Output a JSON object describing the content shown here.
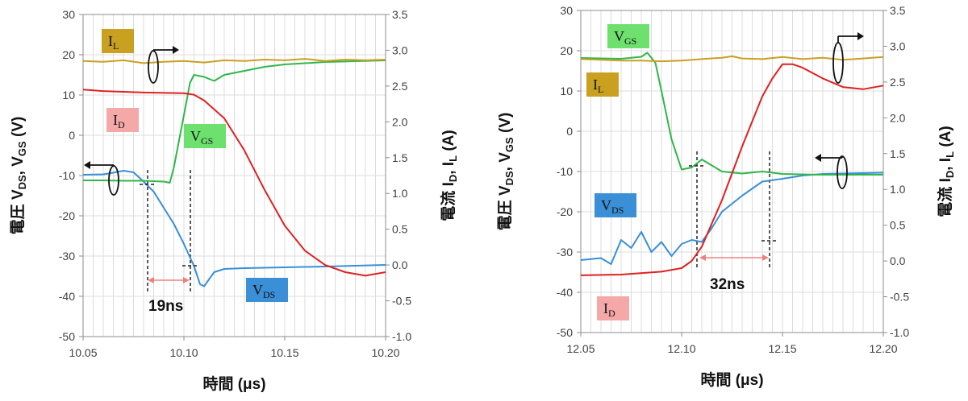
{
  "chart_data": [
    {
      "type": "line",
      "xlabel": "時間 (μs)",
      "ylabel_left": {
        "prefix": "電圧 V",
        "sub1": "DS",
        "mid": ", V",
        "sub2": "GS",
        "suffix": " (V)"
      },
      "ylabel_right": {
        "prefix": "電流 I",
        "sub1": "D",
        "mid": ", I",
        "sub2": "L",
        "suffix": " (A)"
      },
      "xlim": [
        10.05,
        10.2
      ],
      "ylim_left": [
        -50,
        30
      ],
      "ylim_right": [
        -1.0,
        3.5
      ],
      "xticks": [
        "10.05",
        "10.10",
        "10.15",
        "10.20"
      ],
      "yticks_left": [
        "-50",
        "-40",
        "-30",
        "-20",
        "-10",
        "0",
        "10",
        "20",
        "30"
      ],
      "yticks_right": [
        "-1.0",
        "-0.5",
        "0.0",
        "0.5",
        "1.0",
        "1.5",
        "2.0",
        "2.5",
        "3.0",
        "3.5"
      ],
      "grid": true,
      "series": [
        {
          "name": "VDS",
          "axis": "left",
          "color": "#3a8fd6",
          "x": [
            10.05,
            10.06,
            10.065,
            10.07,
            10.075,
            10.08,
            10.085,
            10.09,
            10.095,
            10.1,
            10.105,
            10.108,
            10.11,
            10.115,
            10.12,
            10.13,
            10.15,
            10.17,
            10.2
          ],
          "y": [
            -9.8,
            -9.7,
            -9.3,
            -8.8,
            -9.2,
            -11.5,
            -14,
            -18,
            -22,
            -27,
            -32.5,
            -37,
            -37.5,
            -34,
            -33.2,
            -33,
            -32.8,
            -32.6,
            -32.2
          ]
        },
        {
          "name": "VGS",
          "axis": "left",
          "color": "#2fb84a",
          "x": [
            10.05,
            10.06,
            10.07,
            10.08,
            10.09,
            10.093,
            10.095,
            10.1,
            10.103,
            10.105,
            10.11,
            10.115,
            10.12,
            10.13,
            10.14,
            10.15,
            10.17,
            10.2
          ],
          "y": [
            -11.2,
            -11.2,
            -11.3,
            -11.3,
            -11.5,
            -11.8,
            -8,
            5,
            13,
            15,
            14.5,
            13.5,
            15,
            16,
            17,
            17.6,
            18.2,
            18.6
          ]
        },
        {
          "name": "ID",
          "axis": "right",
          "color": "#e02020",
          "x": [
            10.05,
            10.06,
            10.08,
            10.1,
            10.105,
            10.11,
            10.12,
            10.13,
            10.14,
            10.15,
            10.16,
            10.17,
            10.18,
            10.19,
            10.2
          ],
          "y": [
            2.45,
            2.43,
            2.41,
            2.4,
            2.38,
            2.3,
            2.05,
            1.6,
            1.05,
            0.55,
            0.2,
            0.0,
            -0.1,
            -0.15,
            -0.1
          ]
        },
        {
          "name": "IL",
          "axis": "right",
          "color": "#c9a020",
          "x": [
            10.05,
            10.06,
            10.07,
            10.08,
            10.09,
            10.1,
            10.11,
            10.12,
            10.13,
            10.14,
            10.15,
            10.16,
            10.17,
            10.18,
            10.19,
            10.2
          ],
          "y": [
            2.85,
            2.84,
            2.86,
            2.82,
            2.84,
            2.85,
            2.83,
            2.86,
            2.85,
            2.87,
            2.86,
            2.88,
            2.85,
            2.87,
            2.86,
            2.87
          ]
        }
      ],
      "annotations": {
        "delay": "19ns",
        "labels": [
          {
            "text": "I",
            "sub": "L",
            "bg": "#c9a020",
            "color": "#222"
          },
          {
            "text": "I",
            "sub": "D",
            "bg": "#f4a8a8",
            "color": "#222"
          },
          {
            "text": "V",
            "sub": "GS",
            "bg": "#6ee06e",
            "color": "#222"
          },
          {
            "text": "V",
            "sub": "DS",
            "bg": "#3a8fd6",
            "color": "#fff"
          }
        ]
      }
    },
    {
      "type": "line",
      "xlabel": "時間 (μs)",
      "ylabel_left": {
        "prefix": "電圧 V",
        "sub1": "DS",
        "mid": ", V",
        "sub2": "GS",
        "suffix": " (V)"
      },
      "ylabel_right": {
        "prefix": "電流 I",
        "sub1": "D",
        "mid": ", I",
        "sub2": "L",
        "suffix": " (A)"
      },
      "xlim": [
        12.05,
        12.2
      ],
      "ylim_left": [
        -50,
        30
      ],
      "ylim_right": [
        -1.0,
        3.5
      ],
      "xticks": [
        "12.05",
        "12.10",
        "12.15",
        "12.20"
      ],
      "yticks_left": [
        "-50",
        "-40",
        "-30",
        "-20",
        "-10",
        "0",
        "10",
        "20",
        "30"
      ],
      "yticks_right": [
        "-1.0",
        "-0.5",
        "0.0",
        "0.5",
        "1.0",
        "1.5",
        "2.0",
        "2.5",
        "3.0",
        "3.5"
      ],
      "grid": true,
      "series": [
        {
          "name": "VDS",
          "axis": "left",
          "color": "#3a8fd6",
          "x": [
            12.05,
            12.06,
            12.065,
            12.07,
            12.075,
            12.08,
            12.085,
            12.09,
            12.095,
            12.1,
            12.105,
            12.11,
            12.115,
            12.12,
            12.13,
            12.14,
            12.15,
            12.16,
            12.17,
            12.2
          ],
          "y": [
            -32,
            -31.5,
            -33,
            -27,
            -29,
            -25,
            -30,
            -27.5,
            -31,
            -28,
            -27,
            -27.5,
            -24,
            -20,
            -16,
            -12.5,
            -11.8,
            -11,
            -10.6,
            -10.3
          ]
        },
        {
          "name": "VGS",
          "axis": "left",
          "color": "#2fb84a",
          "x": [
            12.05,
            12.07,
            12.08,
            12.083,
            12.087,
            12.09,
            12.095,
            12.1,
            12.105,
            12.11,
            12.115,
            12.12,
            12.13,
            12.14,
            12.15,
            12.17,
            12.2
          ],
          "y": [
            18.2,
            18,
            18.5,
            19.5,
            17,
            10,
            -2,
            -9.5,
            -9,
            -7,
            -8.5,
            -10,
            -10.5,
            -10,
            -10.6,
            -10.8,
            -10.8
          ]
        },
        {
          "name": "ID",
          "axis": "right",
          "color": "#e02020",
          "x": [
            12.05,
            12.07,
            12.09,
            12.1,
            12.105,
            12.11,
            12.12,
            12.13,
            12.14,
            12.145,
            12.15,
            12.155,
            12.16,
            12.17,
            12.18,
            12.19,
            12.2
          ],
          "y": [
            -0.2,
            -0.19,
            -0.15,
            -0.1,
            0.0,
            0.2,
            0.85,
            1.6,
            2.3,
            2.55,
            2.75,
            2.75,
            2.7,
            2.55,
            2.43,
            2.4,
            2.45
          ]
        },
        {
          "name": "IL",
          "axis": "right",
          "color": "#c9a020",
          "x": [
            12.05,
            12.06,
            12.07,
            12.08,
            12.09,
            12.1,
            12.11,
            12.12,
            12.125,
            12.13,
            12.14,
            12.15,
            12.16,
            12.17,
            12.18,
            12.19,
            12.2
          ],
          "y": [
            2.82,
            2.81,
            2.8,
            2.8,
            2.79,
            2.8,
            2.82,
            2.84,
            2.86,
            2.83,
            2.82,
            2.85,
            2.82,
            2.84,
            2.81,
            2.83,
            2.85
          ]
        }
      ],
      "annotations": {
        "delay": "32ns",
        "labels": [
          {
            "text": "V",
            "sub": "GS",
            "bg": "#6ee06e",
            "color": "#222"
          },
          {
            "text": "I",
            "sub": "L",
            "bg": "#c9a020",
            "color": "#222"
          },
          {
            "text": "V",
            "sub": "DS",
            "bg": "#3a8fd6",
            "color": "#fff"
          },
          {
            "text": "I",
            "sub": "D",
            "bg": "#f4a8a8",
            "color": "#222"
          }
        ]
      }
    }
  ]
}
